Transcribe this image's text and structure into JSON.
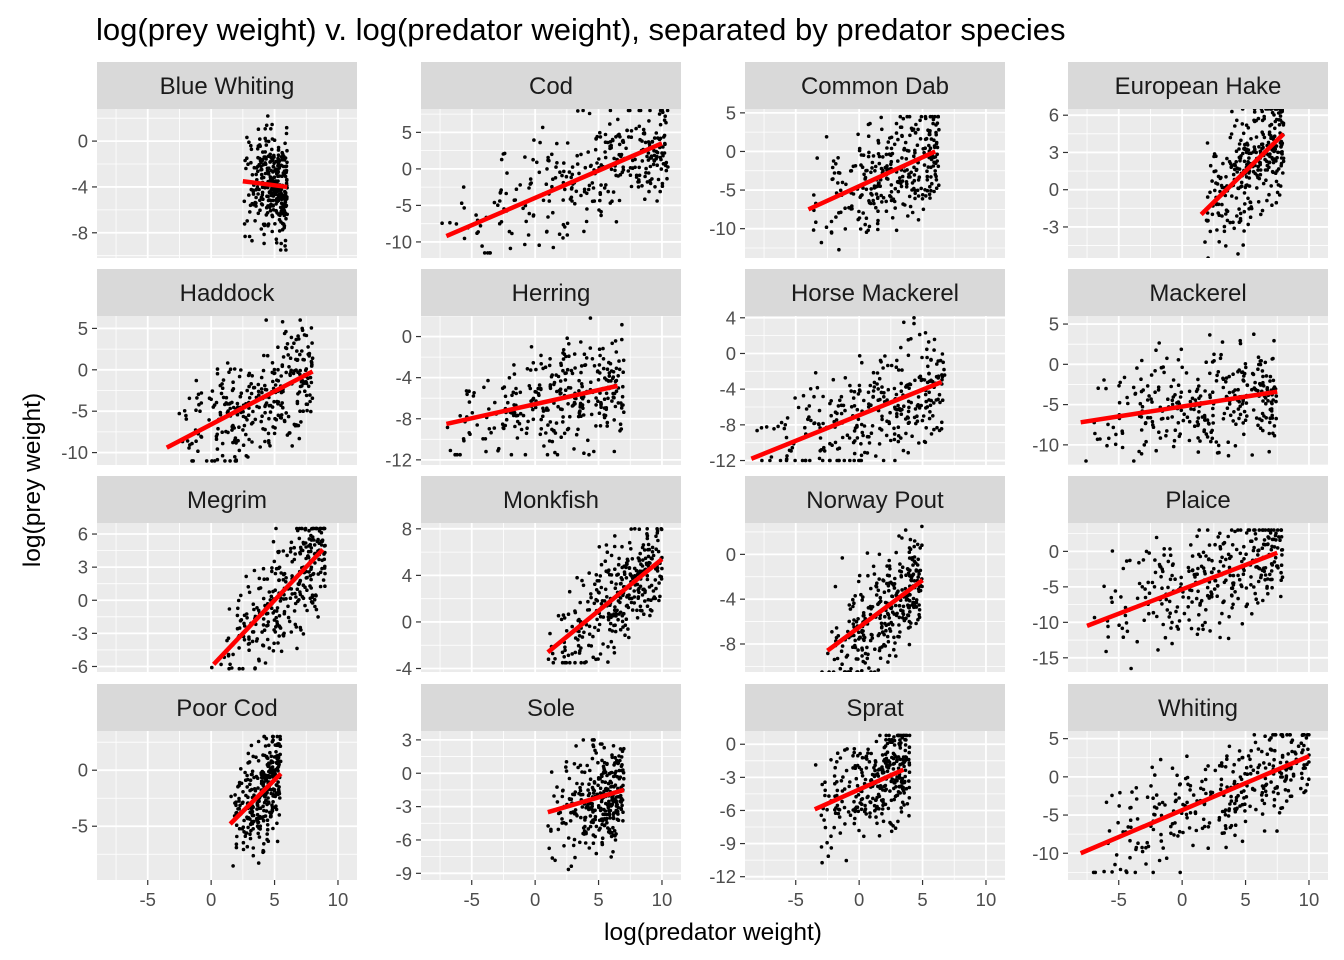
{
  "chart_data": {
    "type": "scatter",
    "title": "log(prey weight) v. log(predator weight), separated by predator species",
    "xlabel": "log(predator weight)",
    "ylabel": "log(prey weight)",
    "xlim": [
      -9,
      11.5
    ],
    "x_ticks": [
      -5,
      0,
      5,
      10
    ],
    "colors": {
      "points": "#000000",
      "trend": "#ff0000",
      "panel_bg": "#ebebeb",
      "strip_bg": "#d9d9d9",
      "grid": "#ffffff"
    },
    "grid": true,
    "panels": [
      {
        "name": "Blue Whiting",
        "ylim": [
          -10.2,
          2.8
        ],
        "yticks": [
          -8,
          -4,
          0
        ],
        "points_summary": {
          "x_range": [
            2.5,
            6.0
          ],
          "y_range": [
            -9.5,
            2.2
          ]
        },
        "trend": {
          "x": [
            2.5,
            6.0
          ],
          "y": [
            -3.5,
            -4.0
          ]
        }
      },
      {
        "name": "Cod",
        "ylim": [
          -12.2,
          8.2
        ],
        "yticks": [
          -10,
          -5,
          0,
          5
        ],
        "points_summary": {
          "x_range": [
            -7.5,
            10.5
          ],
          "y_range": [
            -11.5,
            8.0
          ]
        },
        "trend": {
          "x": [
            -7.0,
            10.0
          ],
          "y": [
            -9.2,
            3.5
          ]
        }
      },
      {
        "name": "Common Dab",
        "ylim": [
          -13.8,
          5.5
        ],
        "yticks": [
          -10,
          -5,
          0,
          5
        ],
        "points_summary": {
          "x_range": [
            -4.0,
            6.3
          ],
          "y_range": [
            -13.0,
            4.5
          ]
        },
        "trend": {
          "x": [
            -4.0,
            6.0
          ],
          "y": [
            -7.5,
            0.0
          ]
        }
      },
      {
        "name": "European Hake",
        "ylim": [
          -5.5,
          6.5
        ],
        "yticks": [
          -3,
          0,
          3,
          6
        ],
        "points_summary": {
          "x_range": [
            1.5,
            8.0
          ],
          "y_range": [
            -5.5,
            6.5
          ]
        },
        "trend": {
          "x": [
            1.5,
            8.0
          ],
          "y": [
            -2.0,
            4.5
          ]
        }
      },
      {
        "name": "Haddock",
        "ylim": [
          -11.5,
          6.5
        ],
        "yticks": [
          -10,
          -5,
          0,
          5
        ],
        "points_summary": {
          "x_range": [
            -3.5,
            8.0
          ],
          "y_range": [
            -11.0,
            6.0
          ]
        },
        "trend": {
          "x": [
            -3.5,
            8.0
          ],
          "y": [
            -9.4,
            -0.2
          ]
        }
      },
      {
        "name": "Herring",
        "ylim": [
          -12.5,
          2.0
        ],
        "yticks": [
          -12,
          -8,
          -4,
          0
        ],
        "points_summary": {
          "x_range": [
            -7.0,
            7.0
          ],
          "y_range": [
            -11.5,
            1.8
          ]
        },
        "trend": {
          "x": [
            -7.0,
            6.5
          ],
          "y": [
            -8.5,
            -4.8
          ]
        }
      },
      {
        "name": "Horse Mackerel",
        "ylim": [
          -12.5,
          4.2
        ],
        "yticks": [
          -12,
          -8,
          -4,
          0,
          4
        ],
        "points_summary": {
          "x_range": [
            -8.3,
            6.8
          ],
          "y_range": [
            -12.0,
            4.0
          ]
        },
        "trend": {
          "x": [
            -8.5,
            6.5
          ],
          "y": [
            -11.8,
            -3.2
          ]
        }
      },
      {
        "name": "Mackerel",
        "ylim": [
          -12.5,
          6.0
        ],
        "yticks": [
          -10,
          -5,
          0,
          5
        ],
        "points_summary": {
          "x_range": [
            -8.0,
            7.5
          ],
          "y_range": [
            -12.0,
            5.5
          ]
        },
        "trend": {
          "x": [
            -8.0,
            7.5
          ],
          "y": [
            -7.2,
            -3.4
          ]
        }
      },
      {
        "name": "Megrim",
        "ylim": [
          -6.5,
          7.0
        ],
        "yticks": [
          -6,
          -3,
          0,
          3,
          6
        ],
        "points_summary": {
          "x_range": [
            0.0,
            9.0
          ],
          "y_range": [
            -6.2,
            6.5
          ]
        },
        "trend": {
          "x": [
            0.2,
            8.8
          ],
          "y": [
            -5.8,
            4.6
          ]
        }
      },
      {
        "name": "Monkfish",
        "ylim": [
          -4.3,
          8.5
        ],
        "yticks": [
          -4,
          0,
          4,
          8
        ],
        "points_summary": {
          "x_range": [
            0.5,
            10.0
          ],
          "y_range": [
            -3.5,
            8.0
          ]
        },
        "trend": {
          "x": [
            1.0,
            10.0
          ],
          "y": [
            -2.6,
            5.4
          ]
        }
      },
      {
        "name": "Norway Pout",
        "ylim": [
          -10.5,
          2.8
        ],
        "yticks": [
          -8,
          -4,
          0
        ],
        "points_summary": {
          "x_range": [
            -3.0,
            5.0
          ],
          "y_range": [
            -10.5,
            2.5
          ]
        },
        "trend": {
          "x": [
            -2.5,
            5.0
          ],
          "y": [
            -8.6,
            -2.3
          ]
        }
      },
      {
        "name": "Plaice",
        "ylim": [
          -17.0,
          4.0
        ],
        "yticks": [
          -15,
          -10,
          -5,
          0
        ],
        "points_summary": {
          "x_range": [
            -7.5,
            8.0
          ],
          "y_range": [
            -16.5,
            3.0
          ]
        },
        "trend": {
          "x": [
            -7.5,
            7.5
          ],
          "y": [
            -10.5,
            -0.2
          ]
        }
      },
      {
        "name": "Poor Cod",
        "ylim": [
          -9.8,
          3.5
        ],
        "yticks": [
          -5,
          0
        ],
        "points_summary": {
          "x_range": [
            1.5,
            5.5
          ],
          "y_range": [
            -9.5,
            3.0
          ]
        },
        "trend": {
          "x": [
            1.5,
            5.5
          ],
          "y": [
            -4.8,
            -0.3
          ]
        }
      },
      {
        "name": "Sole",
        "ylim": [
          -9.6,
          3.8
        ],
        "yticks": [
          -9,
          -6,
          -3,
          0,
          3
        ],
        "points_summary": {
          "x_range": [
            1.0,
            7.0
          ],
          "y_range": [
            -9.2,
            3.0
          ]
        },
        "trend": {
          "x": [
            1.0,
            7.0
          ],
          "y": [
            -3.5,
            -1.5
          ]
        }
      },
      {
        "name": "Sprat",
        "ylim": [
          -12.3,
          1.2
        ],
        "yticks": [
          -12,
          -9,
          -6,
          -3,
          0
        ],
        "points_summary": {
          "x_range": [
            -3.5,
            4.0
          ],
          "y_range": [
            -11.0,
            0.8
          ]
        },
        "trend": {
          "x": [
            -3.5,
            3.5
          ],
          "y": [
            -5.9,
            -2.3
          ]
        }
      },
      {
        "name": "Whiting",
        "ylim": [
          -13.5,
          6.0
        ],
        "yticks": [
          -10,
          -5,
          0,
          5
        ],
        "points_summary": {
          "x_range": [
            -8.0,
            10.0
          ],
          "y_range": [
            -12.5,
            5.5
          ]
        },
        "trend": {
          "x": [
            -8.0,
            10.0
          ],
          "y": [
            -10.0,
            2.7
          ]
        }
      }
    ]
  }
}
